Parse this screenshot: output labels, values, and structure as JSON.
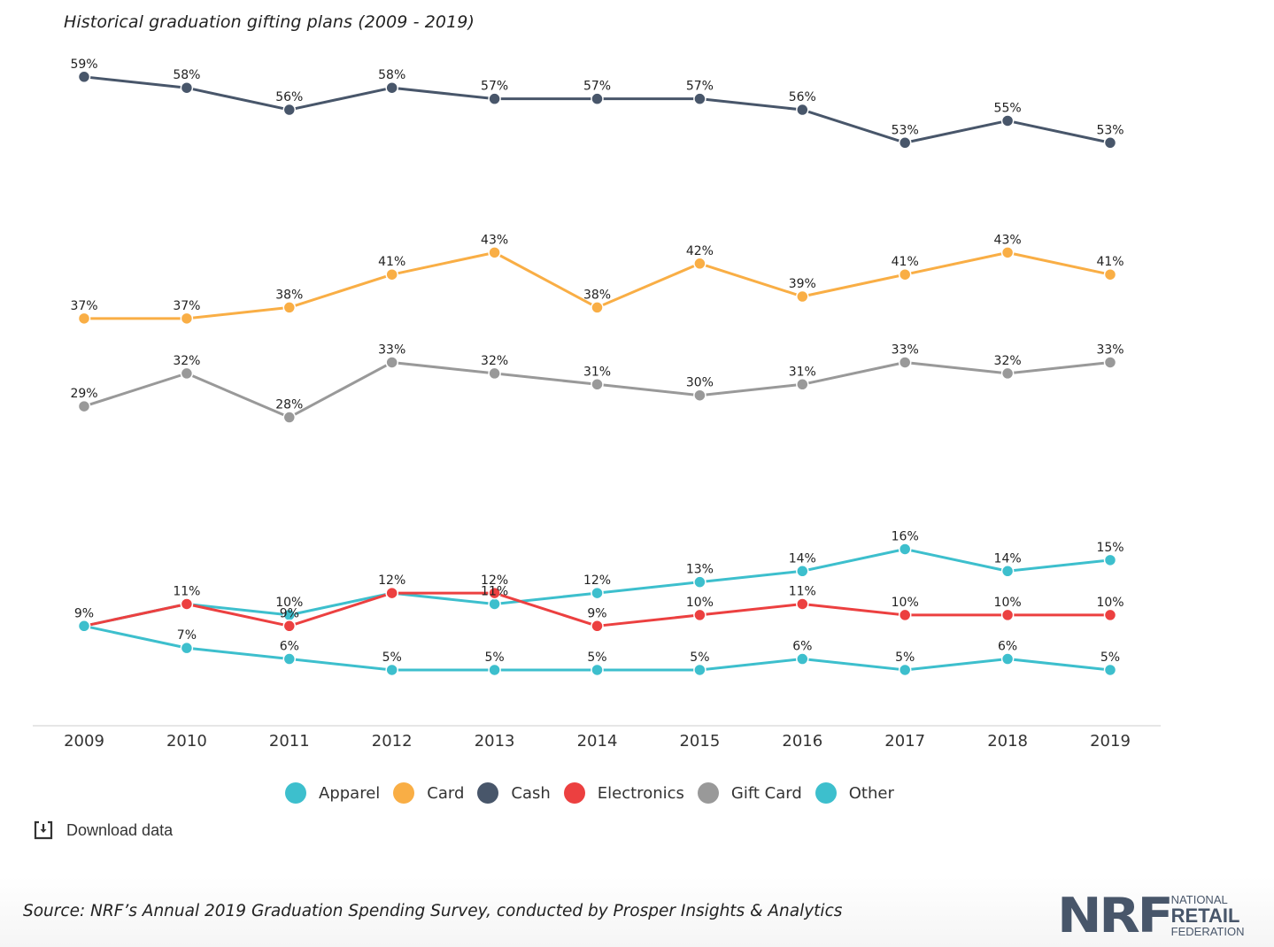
{
  "title": "Historical graduation gifting plans (2009 - 2019)",
  "download_label": "Download data",
  "source": "Source: NRF’s Annual 2019 Graduation Spending Survey, conducted by Prosper Insights & Analytics",
  "logo": {
    "mark": "NRF",
    "line1": "NATIONAL",
    "line2": "RETAIL",
    "line3": "FEDERATION"
  },
  "chart_data": {
    "type": "line",
    "title": "Historical graduation gifting plans (2009 - 2019)",
    "xlabel": "",
    "ylabel": "",
    "x": [
      "2009",
      "2010",
      "2011",
      "2012",
      "2013",
      "2014",
      "2015",
      "2016",
      "2017",
      "2018",
      "2019"
    ],
    "ylim": [
      0,
      59
    ],
    "value_suffix": "%",
    "grid": false,
    "legend_position": "bottom",
    "series": [
      {
        "name": "Apparel",
        "color": "#3dbfcd",
        "values": [
          9,
          11,
          10,
          12,
          11,
          12,
          13,
          14,
          16,
          14,
          15
        ]
      },
      {
        "name": "Card",
        "color": "#f9ae45",
        "values": [
          37,
          37,
          38,
          41,
          43,
          38,
          42,
          39,
          41,
          43,
          41
        ]
      },
      {
        "name": "Cash",
        "color": "#48566a",
        "values": [
          59,
          58,
          56,
          58,
          57,
          57,
          57,
          56,
          53,
          55,
          53
        ]
      },
      {
        "name": "Electronics",
        "color": "#ec4040",
        "values": [
          9,
          11,
          9,
          12,
          12,
          9,
          10,
          11,
          10,
          10,
          10
        ]
      },
      {
        "name": "Gift Card",
        "color": "#999999",
        "values": [
          29,
          32,
          28,
          33,
          32,
          31,
          30,
          31,
          33,
          32,
          33
        ]
      },
      {
        "name": "Other",
        "color": "#3dbfcd",
        "values": [
          9,
          7,
          6,
          5,
          5,
          5,
          5,
          6,
          5,
          6,
          5
        ]
      }
    ]
  }
}
